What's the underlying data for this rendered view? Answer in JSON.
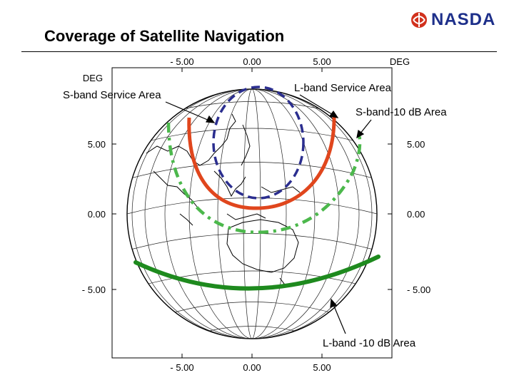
{
  "title": "Coverage of Satellite Navigation",
  "logo": {
    "text": "NASDA",
    "color": "#1d2f8a",
    "mark_color": "#d1311d"
  },
  "axes": {
    "unit": "DEG",
    "top_ticks": [
      "- 5.00",
      "0.00",
      "5.00"
    ],
    "bottom_ticks": [
      "- 5.00",
      "0.00",
      "5.00"
    ],
    "left_ticks": [
      "5.00",
      "0.00",
      "- 5.00"
    ],
    "right_ticks": [
      "5.00",
      "0.00",
      "- 5.00"
    ]
  },
  "annotations": {
    "s_band_service": "S-band Service Area",
    "l_band_service": "L-band Service Area",
    "s_band_10db": "S-band-10 dB Area",
    "l_band_10db": "L-band -10 dB Area"
  },
  "colors": {
    "s_band_service": "#2b2e8f",
    "l_band_service": "#e0461d",
    "s_band_10db": "#4cb84c",
    "l_band_10db": "#1e8a1e"
  }
}
